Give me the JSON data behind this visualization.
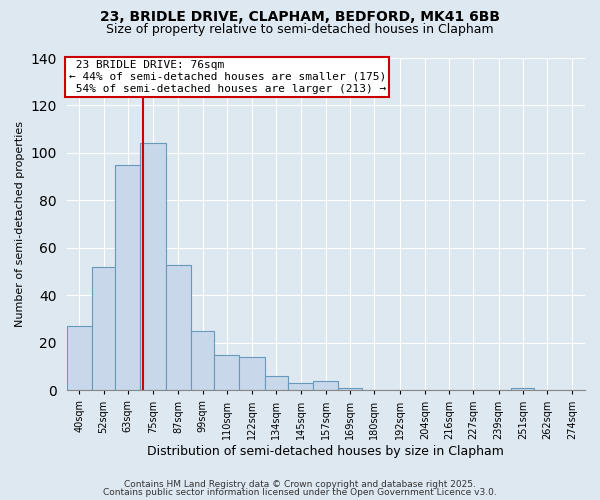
{
  "title1": "23, BRIDLE DRIVE, CLAPHAM, BEDFORD, MK41 6BB",
  "title2": "Size of property relative to semi-detached houses in Clapham",
  "xlabel": "Distribution of semi-detached houses by size in Clapham",
  "ylabel_full": "Number of semi-detached properties",
  "bin_labels": [
    "40sqm",
    "52sqm",
    "63sqm",
    "75sqm",
    "87sqm",
    "99sqm",
    "110sqm",
    "122sqm",
    "134sqm",
    "145sqm",
    "157sqm",
    "169sqm",
    "180sqm",
    "192sqm",
    "204sqm",
    "216sqm",
    "227sqm",
    "239sqm",
    "251sqm",
    "262sqm",
    "274sqm"
  ],
  "bin_values": [
    27,
    52,
    95,
    104,
    53,
    25,
    15,
    14,
    6,
    3,
    4,
    1,
    0,
    0,
    0,
    0,
    0,
    0,
    1,
    0,
    0
  ],
  "bin_edges": [
    40,
    52,
    63,
    75,
    87,
    99,
    110,
    122,
    134,
    145,
    157,
    169,
    180,
    192,
    204,
    216,
    227,
    239,
    251,
    262,
    274,
    286
  ],
  "property_size": 76,
  "property_label": "23 BRIDLE DRIVE: 76sqm",
  "pct_smaller": 44,
  "n_smaller": 175,
  "pct_larger": 54,
  "n_larger": 213,
  "bar_facecolor": "#c8d8ea",
  "bar_edgecolor": "#6699bb",
  "redline_color": "#cc0000",
  "annotation_box_edgecolor": "#cc0000",
  "plot_bg_color": "#dde8f0",
  "fig_bg_color": "#dde8f0",
  "ylim": [
    0,
    140
  ],
  "yticks": [
    0,
    20,
    40,
    60,
    80,
    100,
    120,
    140
  ],
  "footer1": "Contains HM Land Registry data © Crown copyright and database right 2025.",
  "footer2": "Contains public sector information licensed under the Open Government Licence v3.0.",
  "title1_fontsize": 10,
  "title2_fontsize": 9,
  "xlabel_fontsize": 9,
  "ylabel_fontsize": 8,
  "annotation_fontsize": 8,
  "footer_fontsize": 6.5
}
